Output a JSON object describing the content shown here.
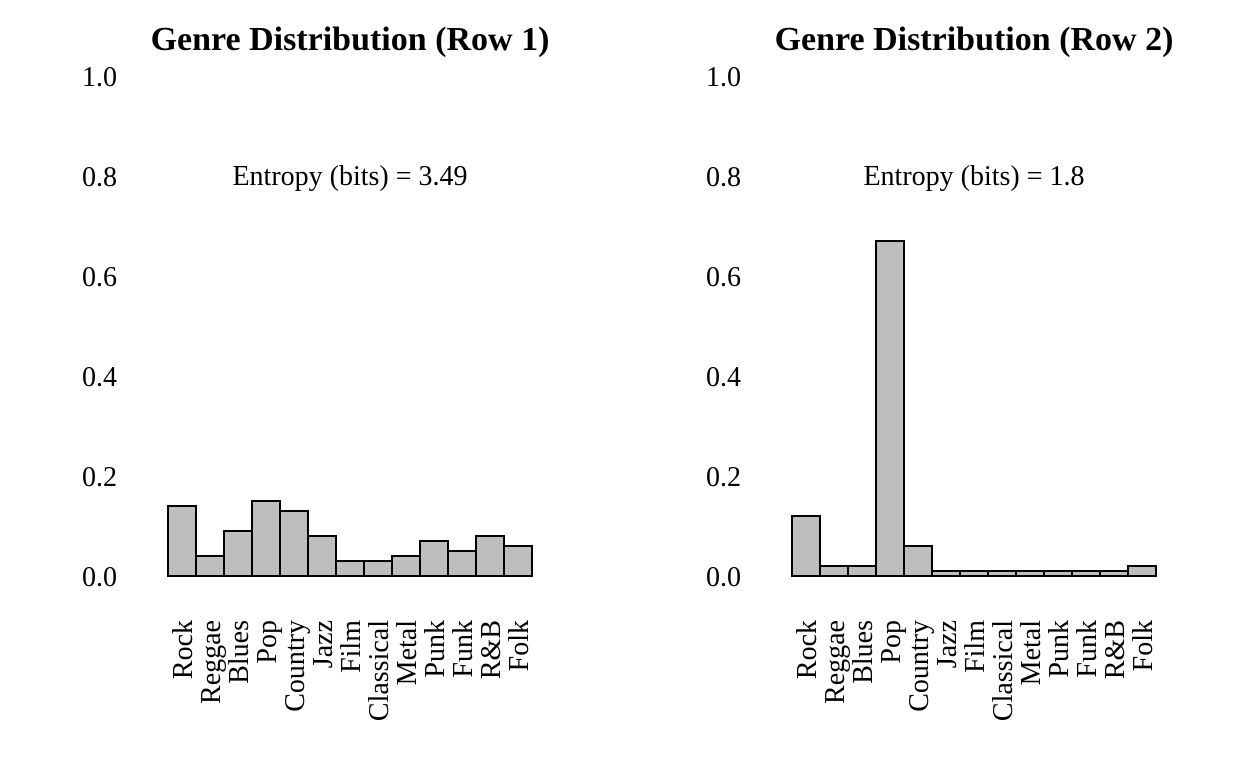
{
  "chart_data": [
    {
      "type": "bar",
      "title": "Genre Distribution (Row 1)",
      "annotation": "Entropy (bits) = 3.49",
      "categories": [
        "Rock",
        "Reggae",
        "Blues",
        "Pop",
        "Country",
        "Jazz",
        "Film",
        "Classical",
        "Metal",
        "Punk",
        "Funk",
        "R&B",
        "Folk"
      ],
      "values": [
        0.14,
        0.04,
        0.09,
        0.15,
        0.13,
        0.08,
        0.03,
        0.03,
        0.04,
        0.07,
        0.05,
        0.08,
        0.06
      ],
      "yticks": [
        "0.0",
        "0.2",
        "0.4",
        "0.6",
        "0.8",
        "1.0"
      ],
      "ylim": [
        0,
        1
      ],
      "bar_color": "#bebebe",
      "grid": false
    },
    {
      "type": "bar",
      "title": "Genre Distribution (Row 2)",
      "annotation": "Entropy (bits) = 1.8",
      "categories": [
        "Rock",
        "Reggae",
        "Blues",
        "Pop",
        "Country",
        "Jazz",
        "Film",
        "Classical",
        "Metal",
        "Punk",
        "Funk",
        "R&B",
        "Folk"
      ],
      "values": [
        0.12,
        0.02,
        0.02,
        0.67,
        0.06,
        0.01,
        0.01,
        0.01,
        0.01,
        0.01,
        0.01,
        0.01,
        0.02
      ],
      "yticks": [
        "0.0",
        "0.2",
        "0.4",
        "0.6",
        "0.8",
        "1.0"
      ],
      "ylim": [
        0,
        1
      ],
      "bar_color": "#bebebe",
      "grid": false
    }
  ]
}
